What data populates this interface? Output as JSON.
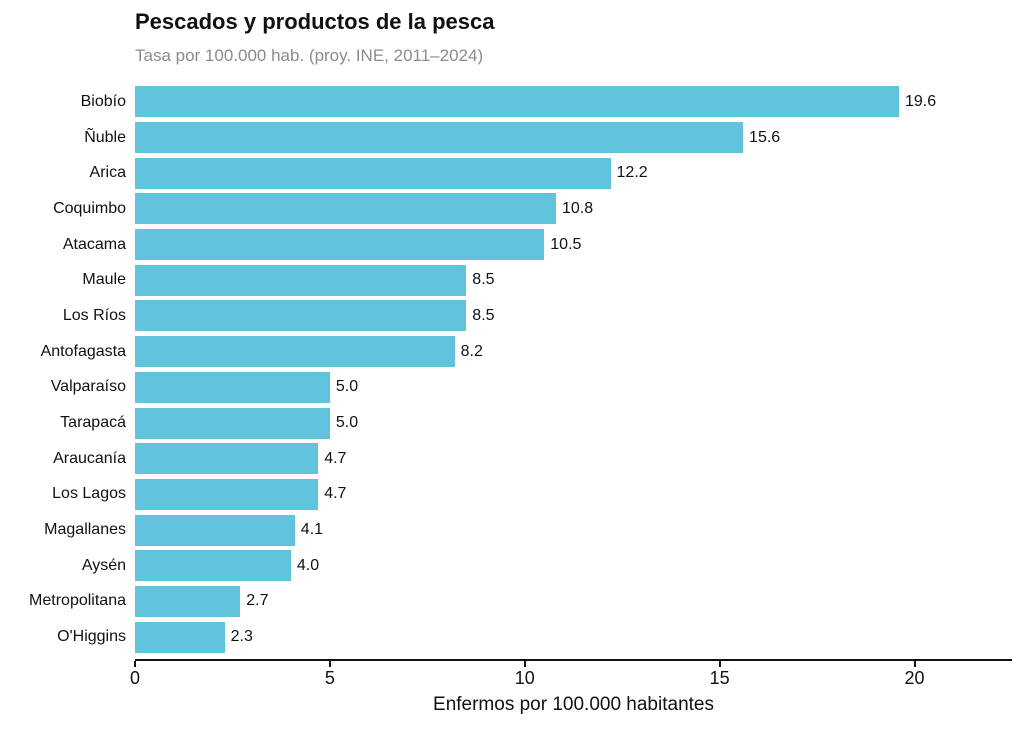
{
  "chart_data": {
    "type": "bar",
    "orientation": "horizontal",
    "title": "Pescados y productos de la pesca",
    "subtitle": "Tasa por 100.000 hab. (proy. INE, 2011–2024)",
    "xlabel": "Enfermos por 100.000 habitantes",
    "categories": [
      "Biobío",
      "Ñuble",
      "Arica",
      "Coquimbo",
      "Atacama",
      "Maule",
      "Los Ríos",
      "Antofagasta",
      "Valparaíso",
      "Tarapacá",
      "Araucanía",
      "Los Lagos",
      "Magallanes",
      "Aysén",
      "Metropolitana",
      "O'Higgins"
    ],
    "values": [
      19.6,
      15.6,
      12.2,
      10.8,
      10.5,
      8.5,
      8.5,
      8.2,
      5.0,
      5.0,
      4.7,
      4.7,
      4.1,
      4.0,
      2.7,
      2.3
    ],
    "value_labels": [
      "19.6",
      "15.6",
      "12.2",
      "10.8",
      "10.5",
      "8.5",
      "8.5",
      "8.2",
      "5.0",
      "5.0",
      "4.7",
      "4.7",
      "4.1",
      "4.0",
      "2.7",
      "2.3"
    ],
    "x_ticks": [
      0,
      5,
      10,
      15,
      20
    ],
    "xlim": [
      0,
      22.5
    ],
    "bar_color": "#61c3dc",
    "grid": false,
    "legend": null
  }
}
